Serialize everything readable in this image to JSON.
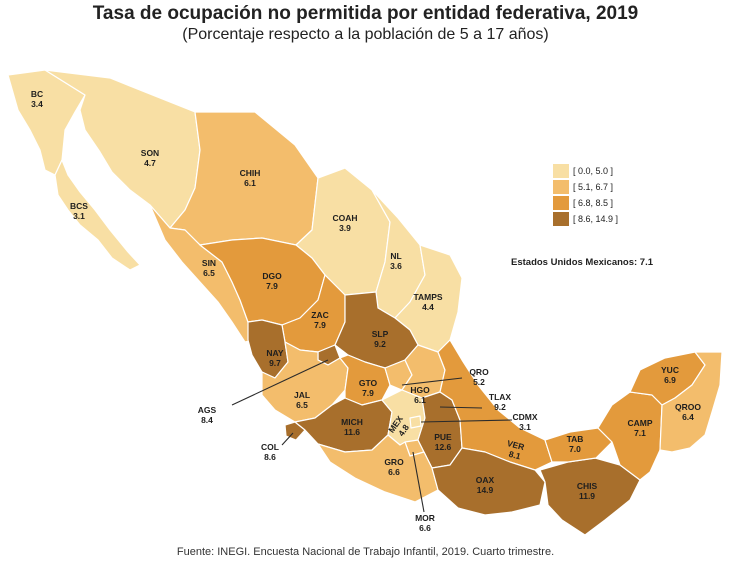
{
  "title": "Tasa de ocupación no permitida por entidad federativa, 2019",
  "subtitle": "(Porcentaje respecto a la población de 5 a 17 años)",
  "legend": {
    "items": [
      {
        "label": "[ 0.0, 5.0 ]",
        "color": "#f8dfa4"
      },
      {
        "label": "[ 5.1, 6.7 ]",
        "color": "#f3bd6c"
      },
      {
        "label": "[ 6.8, 8.5 ]",
        "color": "#e39a3c"
      },
      {
        "label": "[ 8.6, 14.9 ]",
        "color": "#a86f2c"
      }
    ]
  },
  "national_note": "Estados Unidos Mexicanos: 7.1",
  "source": "Fuente: INEGI. Encuesta Nacional de Trabajo Infantil, 2019. Cuarto trimestre.",
  "states": [
    {
      "id": "bc",
      "abbr": "BC",
      "value": "3.4"
    },
    {
      "id": "bcs",
      "abbr": "BCS",
      "value": "3.1"
    },
    {
      "id": "son",
      "abbr": "SON",
      "value": "4.7"
    },
    {
      "id": "chih",
      "abbr": "CHIH",
      "value": "6.1"
    },
    {
      "id": "coah",
      "abbr": "COAH",
      "value": "3.9"
    },
    {
      "id": "nl",
      "abbr": "NL",
      "value": "3.6"
    },
    {
      "id": "tamps",
      "abbr": "TAMPS",
      "value": "4.4"
    },
    {
      "id": "sin",
      "abbr": "SIN",
      "value": "6.5"
    },
    {
      "id": "dgo",
      "abbr": "DGO",
      "value": "7.9"
    },
    {
      "id": "zac",
      "abbr": "ZAC",
      "value": "7.9"
    },
    {
      "id": "slp",
      "abbr": "SLP",
      "value": "9.2"
    },
    {
      "id": "nay",
      "abbr": "NAY",
      "value": "9.7"
    },
    {
      "id": "ags",
      "abbr": "AGS",
      "value": "8.4"
    },
    {
      "id": "jal",
      "abbr": "JAL",
      "value": "6.5"
    },
    {
      "id": "gto",
      "abbr": "GTO",
      "value": "7.9"
    },
    {
      "id": "qro",
      "abbr": "QRO",
      "value": "5.2"
    },
    {
      "id": "hgo",
      "abbr": "HGO",
      "value": "6.1"
    },
    {
      "id": "tlax",
      "abbr": "TLAX",
      "value": "9.2"
    },
    {
      "id": "cdmx",
      "abbr": "CDMX",
      "value": "3.1"
    },
    {
      "id": "mex",
      "abbr": "MEX",
      "value": "4.8"
    },
    {
      "id": "col",
      "abbr": "COL",
      "value": "8.6"
    },
    {
      "id": "mich",
      "abbr": "MICH",
      "value": "11.6"
    },
    {
      "id": "pue",
      "abbr": "PUE",
      "value": "12.6"
    },
    {
      "id": "ver",
      "abbr": "VER",
      "value": "8.1"
    },
    {
      "id": "gro",
      "abbr": "GRO",
      "value": "6.6"
    },
    {
      "id": "mor",
      "abbr": "MOR",
      "value": "6.6"
    },
    {
      "id": "oax",
      "abbr": "OAX",
      "value": "14.9"
    },
    {
      "id": "chis",
      "abbr": "CHIS",
      "value": "11.9"
    },
    {
      "id": "tab",
      "abbr": "TAB",
      "value": "7.0"
    },
    {
      "id": "camp",
      "abbr": "CAMP",
      "value": "7.1"
    },
    {
      "id": "yuc",
      "abbr": "YUC",
      "value": "6.9"
    },
    {
      "id": "qroo",
      "abbr": "QROO",
      "value": "6.4"
    }
  ]
}
